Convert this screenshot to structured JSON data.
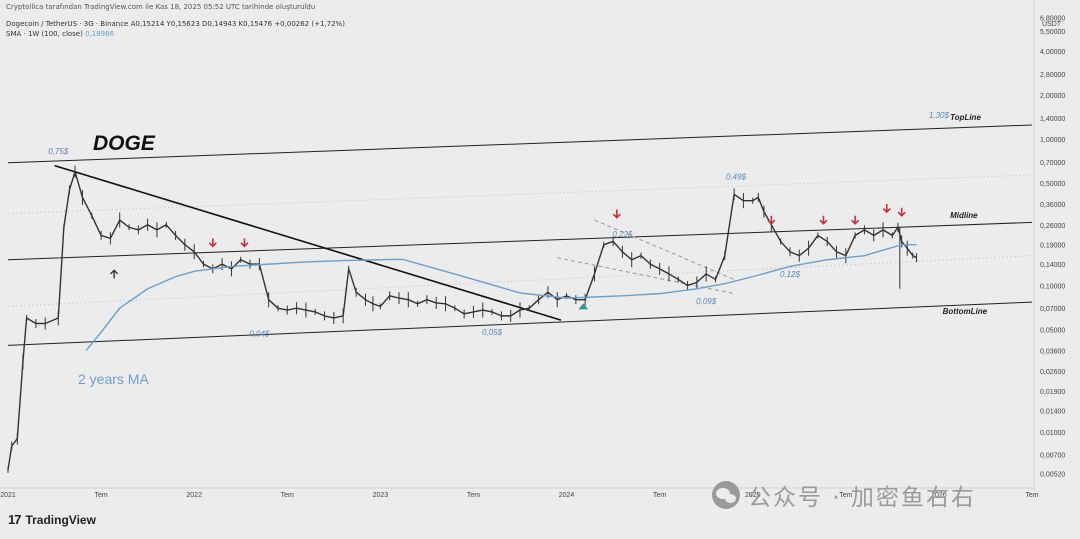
{
  "header": {
    "published": "Cryptollica tarafından TradingView.com ile Kas 18, 2025 05:52 UTC tarihinde oluşturuldu",
    "symbol_line": "Dogecoin / TetherUS · 3G · Binance  A0,15214  Y0,15623  D0,14943  K0,15476  +0,00262 (+1,72%)",
    "indicator": "SMA · 1W (100, close)",
    "indicator_value": "0,18986"
  },
  "brand": {
    "mark": "17",
    "name": "TradingView"
  },
  "watermark": "公众号 · 加密鱼右右",
  "colors": {
    "ma": "#6a9fd0",
    "arrow_down": "#c9303a",
    "arrow_up": "#2f9c8a",
    "candle": "#333333",
    "line": "#222222",
    "label": "#5a86b8"
  },
  "chart_data": {
    "type": "line",
    "title": "DOGE",
    "y_unit": "USDT",
    "y_scale": "log",
    "ylim": [
      0.0044,
      7.4
    ],
    "y_ticks": [
      {
        "v": 6.8,
        "label": "6,80000"
      },
      {
        "v": 5.5,
        "label": "5,50000"
      },
      {
        "v": 4.0,
        "label": "4,00000"
      },
      {
        "v": 2.8,
        "label": "2,80000"
      },
      {
        "v": 2.0,
        "label": "2,00000"
      },
      {
        "v": 1.4,
        "label": "1,40000"
      },
      {
        "v": 1.0,
        "label": "1,00000"
      },
      {
        "v": 0.7,
        "label": "0,70000"
      },
      {
        "v": 0.5,
        "label": "0,50000"
      },
      {
        "v": 0.36,
        "label": "0,36000"
      },
      {
        "v": 0.26,
        "label": "0,26000"
      },
      {
        "v": 0.19,
        "label": "0,19000"
      },
      {
        "v": 0.14,
        "label": "0,14000"
      },
      {
        "v": 0.1,
        "label": "0,10000"
      },
      {
        "v": 0.07,
        "label": "0,07000"
      },
      {
        "v": 0.05,
        "label": "0,05000"
      },
      {
        "v": 0.036,
        "label": "0,03600"
      },
      {
        "v": 0.026,
        "label": "0,02600"
      },
      {
        "v": 0.019,
        "label": "0,01900"
      },
      {
        "v": 0.014,
        "label": "0,01400"
      },
      {
        "v": 0.01,
        "label": "0,01000"
      },
      {
        "v": 0.007,
        "label": "0,00700"
      },
      {
        "v": 0.0052,
        "label": "0,00520"
      }
    ],
    "xlim": [
      2021.0,
      2026.5
    ],
    "x_ticks": [
      {
        "t": 2021.0,
        "label": "2021"
      },
      {
        "t": 2021.5,
        "label": "Tem"
      },
      {
        "t": 2022.0,
        "label": "2022"
      },
      {
        "t": 2022.5,
        "label": "Tem"
      },
      {
        "t": 2023.0,
        "label": "2023"
      },
      {
        "t": 2023.5,
        "label": "Tem"
      },
      {
        "t": 2024.0,
        "label": "2024"
      },
      {
        "t": 2024.5,
        "label": "Tem"
      },
      {
        "t": 2025.0,
        "label": "2025"
      },
      {
        "t": 2025.5,
        "label": "Tem"
      },
      {
        "t": 2026.0,
        "label": "2026"
      },
      {
        "t": 2026.5,
        "label": "Tem"
      }
    ],
    "price": [
      [
        2021.0,
        0.0055
      ],
      [
        2021.02,
        0.008
      ],
      [
        2021.05,
        0.009
      ],
      [
        2021.08,
        0.03
      ],
      [
        2021.1,
        0.06
      ],
      [
        2021.15,
        0.055
      ],
      [
        2021.2,
        0.055
      ],
      [
        2021.27,
        0.06
      ],
      [
        2021.3,
        0.25
      ],
      [
        2021.33,
        0.45
      ],
      [
        2021.36,
        0.6
      ],
      [
        2021.4,
        0.4
      ],
      [
        2021.45,
        0.3
      ],
      [
        2021.5,
        0.22
      ],
      [
        2021.55,
        0.21
      ],
      [
        2021.6,
        0.28
      ],
      [
        2021.65,
        0.25
      ],
      [
        2021.7,
        0.24
      ],
      [
        2021.75,
        0.26
      ],
      [
        2021.8,
        0.24
      ],
      [
        2021.85,
        0.26
      ],
      [
        2021.9,
        0.22
      ],
      [
        2021.95,
        0.19
      ],
      [
        2022.0,
        0.17
      ],
      [
        2022.05,
        0.14
      ],
      [
        2022.1,
        0.13
      ],
      [
        2022.15,
        0.14
      ],
      [
        2022.2,
        0.13
      ],
      [
        2022.25,
        0.15
      ],
      [
        2022.3,
        0.14
      ],
      [
        2022.35,
        0.14
      ],
      [
        2022.4,
        0.08
      ],
      [
        2022.45,
        0.07
      ],
      [
        2022.5,
        0.068
      ],
      [
        2022.55,
        0.07
      ],
      [
        2022.6,
        0.068
      ],
      [
        2022.65,
        0.066
      ],
      [
        2022.7,
        0.062
      ],
      [
        2022.75,
        0.06
      ],
      [
        2022.8,
        0.062
      ],
      [
        2022.83,
        0.13
      ],
      [
        2022.87,
        0.09
      ],
      [
        2022.92,
        0.08
      ],
      [
        2022.96,
        0.075
      ],
      [
        2023.0,
        0.072
      ],
      [
        2023.05,
        0.085
      ],
      [
        2023.1,
        0.082
      ],
      [
        2023.15,
        0.08
      ],
      [
        2023.2,
        0.075
      ],
      [
        2023.25,
        0.08
      ],
      [
        2023.3,
        0.076
      ],
      [
        2023.35,
        0.075
      ],
      [
        2023.4,
        0.07
      ],
      [
        2023.45,
        0.064
      ],
      [
        2023.5,
        0.066
      ],
      [
        2023.55,
        0.068
      ],
      [
        2023.6,
        0.066
      ],
      [
        2023.65,
        0.062
      ],
      [
        2023.7,
        0.062
      ],
      [
        2023.75,
        0.068
      ],
      [
        2023.8,
        0.07
      ],
      [
        2023.85,
        0.08
      ],
      [
        2023.9,
        0.09
      ],
      [
        2023.95,
        0.08
      ],
      [
        2024.0,
        0.085
      ],
      [
        2024.05,
        0.08
      ],
      [
        2024.1,
        0.08
      ],
      [
        2024.15,
        0.12
      ],
      [
        2024.2,
        0.19
      ],
      [
        2024.25,
        0.2
      ],
      [
        2024.3,
        0.17
      ],
      [
        2024.35,
        0.15
      ],
      [
        2024.4,
        0.16
      ],
      [
        2024.45,
        0.14
      ],
      [
        2024.5,
        0.13
      ],
      [
        2024.55,
        0.12
      ],
      [
        2024.6,
        0.11
      ],
      [
        2024.65,
        0.1
      ],
      [
        2024.7,
        0.105
      ],
      [
        2024.75,
        0.12
      ],
      [
        2024.8,
        0.11
      ],
      [
        2024.85,
        0.16
      ],
      [
        2024.9,
        0.42
      ],
      [
        2024.95,
        0.38
      ],
      [
        2025.0,
        0.38
      ],
      [
        2025.03,
        0.4
      ],
      [
        2025.06,
        0.32
      ],
      [
        2025.1,
        0.26
      ],
      [
        2025.15,
        0.2
      ],
      [
        2025.2,
        0.17
      ],
      [
        2025.25,
        0.16
      ],
      [
        2025.3,
        0.18
      ],
      [
        2025.35,
        0.22
      ],
      [
        2025.4,
        0.2
      ],
      [
        2025.45,
        0.17
      ],
      [
        2025.5,
        0.16
      ],
      [
        2025.55,
        0.22
      ],
      [
        2025.6,
        0.24
      ],
      [
        2025.65,
        0.22
      ],
      [
        2025.7,
        0.24
      ],
      [
        2025.75,
        0.22
      ],
      [
        2025.78,
        0.25
      ],
      [
        2025.8,
        0.2
      ],
      [
        2025.83,
        0.18
      ],
      [
        2025.86,
        0.16
      ],
      [
        2025.88,
        0.155
      ]
    ],
    "wick": {
      "t": 2025.79,
      "low": 0.095,
      "high": 0.25
    },
    "ma_2y": [
      [
        2021.42,
        0.036
      ],
      [
        2021.5,
        0.048
      ],
      [
        2021.6,
        0.07
      ],
      [
        2021.75,
        0.095
      ],
      [
        2021.9,
        0.115
      ],
      [
        2022.0,
        0.125
      ],
      [
        2022.2,
        0.135
      ],
      [
        2022.4,
        0.14
      ],
      [
        2022.6,
        0.145
      ],
      [
        2022.8,
        0.148
      ],
      [
        2023.0,
        0.15
      ],
      [
        2023.12,
        0.151
      ],
      [
        2023.3,
        0.13
      ],
      [
        2023.5,
        0.11
      ],
      [
        2023.75,
        0.089
      ],
      [
        2024.0,
        0.082
      ],
      [
        2024.3,
        0.085
      ],
      [
        2024.5,
        0.088
      ],
      [
        2024.7,
        0.095
      ],
      [
        2024.85,
        0.103
      ],
      [
        2025.0,
        0.115
      ],
      [
        2025.2,
        0.135
      ],
      [
        2025.4,
        0.15
      ],
      [
        2025.6,
        0.16
      ],
      [
        2025.8,
        0.19
      ],
      [
        2025.88,
        0.19
      ]
    ],
    "channel": {
      "topline": {
        "label": "TopLine",
        "start": [
          2021.0,
          0.69
        ],
        "end": [
          2026.5,
          1.25
        ]
      },
      "midline": {
        "label": "Midline",
        "start": [
          2021.0,
          0.15
        ],
        "end": [
          2026.5,
          0.27
        ]
      },
      "bottomline": {
        "label": "BottomLine",
        "start": [
          2021.0,
          0.039
        ],
        "end": [
          2026.5,
          0.077
        ]
      },
      "upper_dotted": {
        "start": [
          2021.0,
          0.31
        ],
        "end": [
          2026.5,
          0.57
        ]
      },
      "lower_dotted": {
        "start": [
          2021.0,
          0.072
        ],
        "end": [
          2026.5,
          0.16
        ]
      }
    },
    "trendline": {
      "start": [
        2021.25,
        0.66
      ],
      "end": [
        2023.97,
        0.058
      ]
    },
    "dashed_wedge": [
      {
        "start": [
          2023.95,
          0.155
        ],
        "end": [
          2024.9,
          0.088
        ]
      },
      {
        "start": [
          2024.15,
          0.28
        ],
        "end": [
          2024.9,
          0.11
        ]
      }
    ],
    "annotations": [
      {
        "t": 2021.27,
        "v": 0.79,
        "text": "0,75$"
      },
      {
        "t": 2022.35,
        "v": 0.045,
        "text": "0,04$"
      },
      {
        "t": 2023.6,
        "v": 0.046,
        "text": "0,05$"
      },
      {
        "t": 2024.3,
        "v": 0.215,
        "text": "0,22$"
      },
      {
        "t": 2024.75,
        "v": 0.075,
        "text": "0,09$"
      },
      {
        "t": 2024.91,
        "v": 0.53,
        "text": "0,49$"
      },
      {
        "t": 2025.2,
        "v": 0.114,
        "text": "0,12$"
      },
      {
        "t": 2026.0,
        "v": 1.4,
        "text": "1,30$"
      }
    ],
    "arrows_down": [
      {
        "t": 2022.1,
        "v": 0.21
      },
      {
        "t": 2022.27,
        "v": 0.21
      },
      {
        "t": 2024.27,
        "v": 0.33
      },
      {
        "t": 2025.1,
        "v": 0.3
      },
      {
        "t": 2025.38,
        "v": 0.3
      },
      {
        "t": 2025.55,
        "v": 0.3
      },
      {
        "t": 2025.72,
        "v": 0.36
      },
      {
        "t": 2025.8,
        "v": 0.34
      }
    ],
    "arrows_up": [
      {
        "t": 2021.57,
        "v": 0.125,
        "style": "outline"
      },
      {
        "t": 2024.09,
        "v": 0.072,
        "style": "filled"
      }
    ],
    "ma_label": "2 years MA"
  }
}
